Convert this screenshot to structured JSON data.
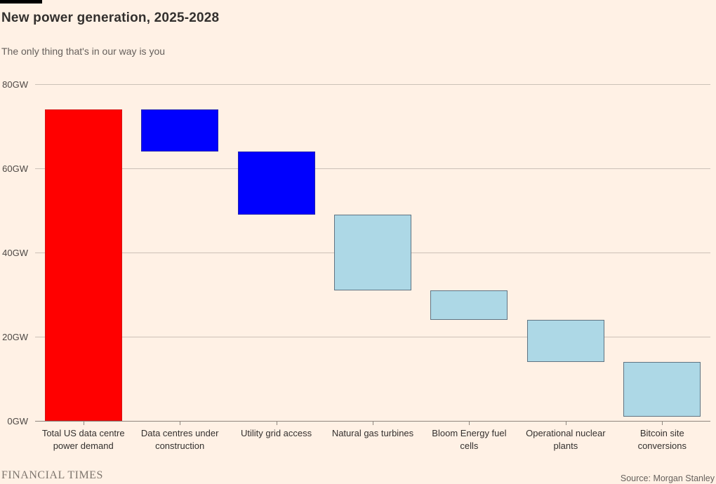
{
  "header": {
    "title": "New power generation, 2025-2028",
    "subtitle": "The only thing that's in our way is you"
  },
  "chart_data": {
    "type": "bar",
    "variant": "waterfall",
    "title": "New power generation, 2025-2028",
    "subtitle": "The only thing that's in our way is you",
    "unit": "GW",
    "ylim": [
      0,
      80
    ],
    "grid": true,
    "legend": false,
    "yticks": [
      {
        "value": 0,
        "label": "0GW"
      },
      {
        "value": 20,
        "label": "20GW"
      },
      {
        "value": 40,
        "label": "40GW"
      },
      {
        "value": 60,
        "label": "60GW"
      },
      {
        "value": 80,
        "label": "80GW"
      }
    ],
    "bars": [
      {
        "category": "Total US data centre power demand",
        "from": 0,
        "to": 74,
        "fill": "#ff0000",
        "stroke": "#d41414"
      },
      {
        "category": "Data centres under construction",
        "from": 64,
        "to": 74,
        "fill": "#0000fe",
        "stroke": "#2020b0"
      },
      {
        "category": "Utility grid access",
        "from": 49,
        "to": 64,
        "fill": "#0000fe",
        "stroke": "#2020b0"
      },
      {
        "category": "Natural gas turbines",
        "from": 31,
        "to": 49,
        "fill": "#add8e6",
        "stroke": "#5f7382"
      },
      {
        "category": "Bloom Energy fuel cells",
        "from": 24,
        "to": 31,
        "fill": "#add8e6",
        "stroke": "#5f7382"
      },
      {
        "category": "Operational nuclear plants",
        "from": 14,
        "to": 24,
        "fill": "#add8e6",
        "stroke": "#5f7382"
      },
      {
        "category": "Bitcoin site conversions",
        "from": 1,
        "to": 14,
        "fill": "#add8e6",
        "stroke": "#5f7382"
      }
    ]
  },
  "footer": {
    "brand": "FINANCIAL TIMES",
    "source": "Source: Morgan Stanley"
  },
  "colors": {
    "background": "#fff1e5",
    "tag_bar": "#000000",
    "title_text": "#33302e",
    "subtitle_text": "#66605c",
    "tick_text": "#4d4845",
    "gridline": "#ccc1b7",
    "axis_line": "#8f867e",
    "bar_red": "#ff0000",
    "bar_blue": "#0000fe",
    "bar_lightblue": "#add8e6"
  }
}
